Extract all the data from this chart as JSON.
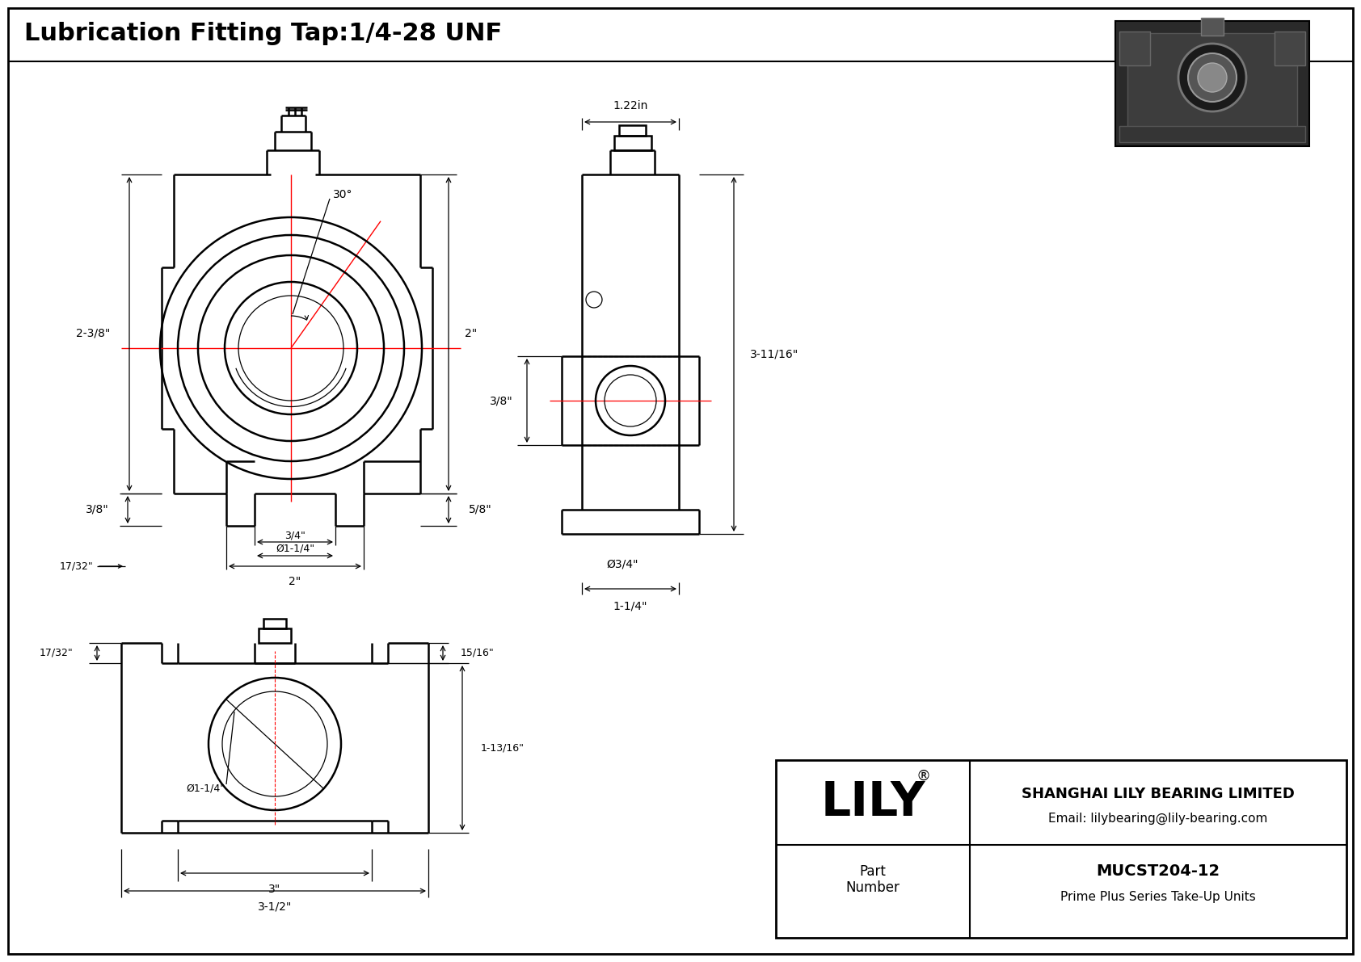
{
  "title": "Lubrication Fitting Tap:1/4-28 UNF",
  "bg_color": "#ffffff",
  "line_color": "#000000",
  "red_color": "#ff0000",
  "title_fontsize": 22,
  "label_fontsize": 11,
  "company_name": "SHANGHAI LILY BEARING LIMITED",
  "company_email": "Email: lilybearing@lily-bearing.com",
  "lily_text": "LILY",
  "lily_reg": "®",
  "part_label": "Part\nNumber",
  "part_number": "MUCST204-12",
  "part_series": "Prime Plus Series Take-Up Units",
  "dims": {
    "front_30deg": "30°",
    "front_2in": "2\"",
    "front_238": "2-3/8\"",
    "front_58": "5/8\"",
    "front_38left": "3/8\"",
    "front_34": "3/4\"",
    "front_dia114": "Ø1-1/4\"",
    "front_2": "2\"",
    "side_122": "1.22in",
    "side_311": "3-11/16\"",
    "side_38": "3/8\"",
    "side_dia34": "Ø3/4\"",
    "side_114": "1-1/4\"",
    "bot_1732": "17/32\"",
    "bot_1516": "15/16\"",
    "bot_11316": "1-13/16\"",
    "bot_dia114": "Ø1-1/4\"",
    "bot_3": "3\"",
    "bot_312": "3-1/2\""
  }
}
